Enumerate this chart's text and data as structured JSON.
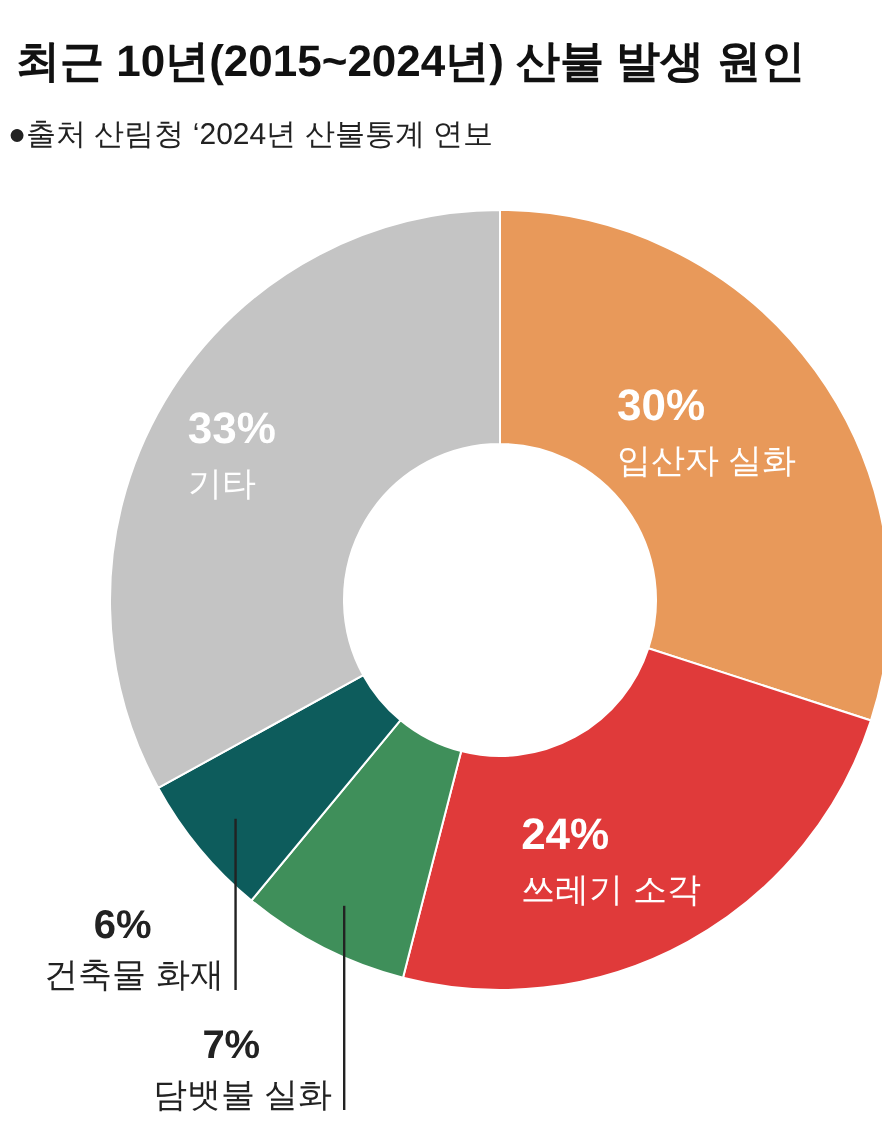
{
  "chart_data": {
    "type": "donut",
    "title": "최근 10년(2015~2024년) 산불 발생 원인",
    "subtitle": "●출처 산림청 ‘2024년 산불통계 연보",
    "categories": [
      "입산자 실화",
      "쓰레기 소각",
      "담뱃불 실화",
      "건축물 화재",
      "기타"
    ],
    "values": [
      30,
      24,
      7,
      6,
      33
    ],
    "colors": [
      "#e8995a",
      "#e03a3a",
      "#3f8f5a",
      "#0d5c5c",
      "#c4c4c4"
    ],
    "value_labels": [
      "30%",
      "24%",
      "7%",
      "6%",
      "33%"
    ]
  }
}
